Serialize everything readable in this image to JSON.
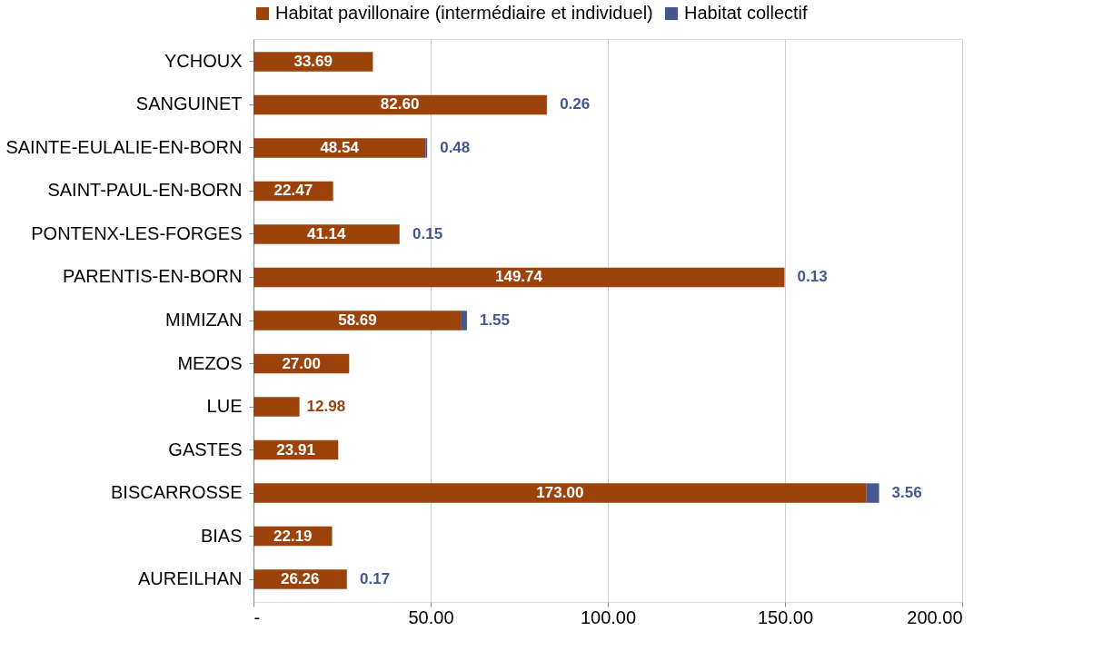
{
  "chart_data": {
    "type": "bar",
    "orientation": "horizontal",
    "stacked": true,
    "categories": [
      "YCHOUX",
      "SANGUINET",
      "SAINTE-EULALIE-EN-BORN",
      "SAINT-PAUL-EN-BORN",
      "PONTENX-LES-FORGES",
      "PARENTIS-EN-BORN",
      "MIMIZAN",
      "MEZOS",
      "LUE",
      "GASTES",
      "BISCARROSSE",
      "BIAS",
      "AUREILHAN"
    ],
    "series": [
      {
        "name": "Habitat pavillonaire (intermédiaire et individuel)",
        "color": "#9c430c",
        "values": [
          33.69,
          82.6,
          48.54,
          22.47,
          41.14,
          149.74,
          58.69,
          27.0,
          12.98,
          23.91,
          173.0,
          22.19,
          26.26
        ],
        "value_labels": [
          "33.69",
          "82.60",
          "48.54",
          "22.47",
          "41.14",
          "149.74",
          "58.69",
          "27.00",
          "12.98",
          "23.91",
          "173.00",
          "22.19",
          "26.26"
        ]
      },
      {
        "name": "Habitat collectif",
        "color": "#44578f",
        "values": [
          null,
          0.26,
          0.48,
          null,
          0.15,
          0.13,
          1.55,
          null,
          null,
          null,
          3.56,
          null,
          0.17
        ],
        "value_labels": [
          null,
          "0.26",
          "0.48",
          null,
          "0.15",
          "0.13",
          "1.55",
          null,
          null,
          null,
          "3.56",
          null,
          "0.17"
        ]
      }
    ],
    "xlim": [
      0,
      200
    ],
    "xticks": [
      {
        "value": 0,
        "label": "-"
      },
      {
        "value": 50,
        "label": "50.00"
      },
      {
        "value": 100,
        "label": "100.00"
      },
      {
        "value": 150,
        "label": "150.00"
      },
      {
        "value": 200,
        "label": "200.00"
      }
    ],
    "grid": "x",
    "legend": "top"
  }
}
